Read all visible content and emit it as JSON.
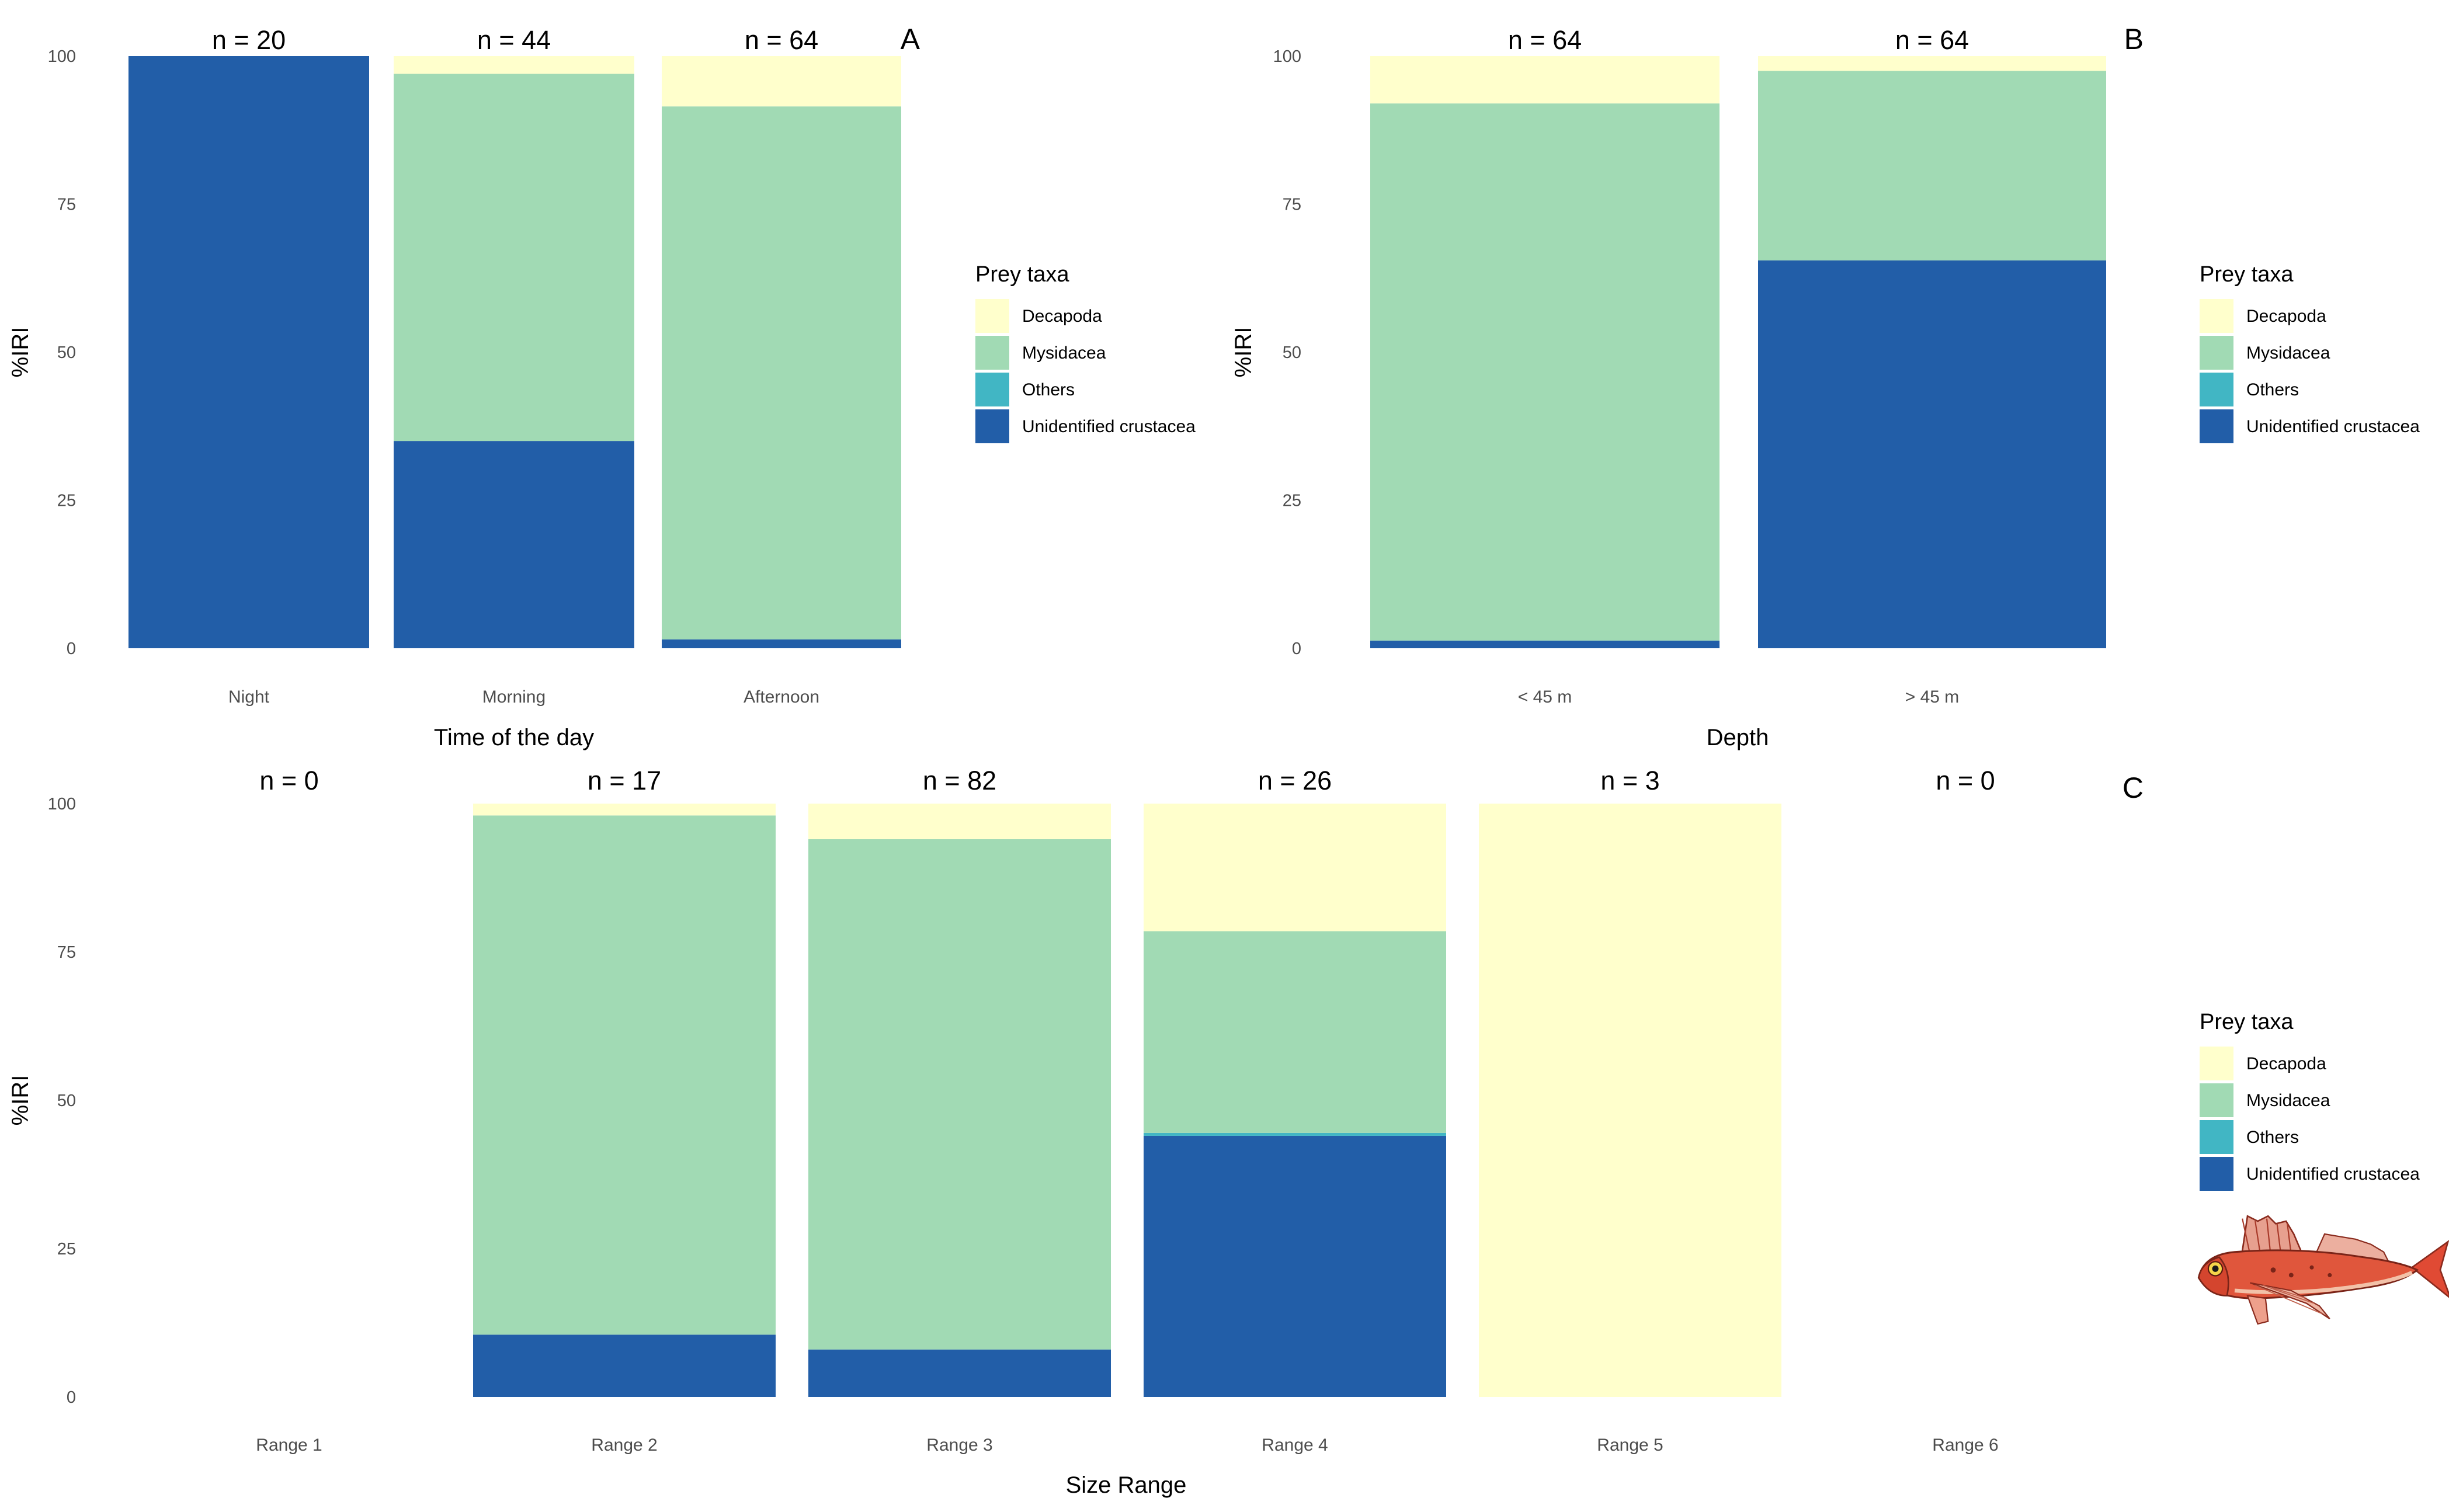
{
  "chart_data": [
    {
      "type": "bar",
      "panel": "A",
      "stacked": true,
      "xlabel": "Time of the day",
      "ylabel": "%IRI",
      "ylim": [
        0,
        100
      ],
      "yticks": [
        "0",
        "25",
        "50",
        "75",
        "100"
      ],
      "categories": [
        "Night",
        "Morning",
        "Afternoon"
      ],
      "n_labels": [
        "n = 20",
        "n = 44",
        "n = 64"
      ],
      "series": [
        {
          "name": "Unidentified crustacea",
          "values": [
            100,
            35,
            1.5
          ]
        },
        {
          "name": "Others",
          "values": [
            0,
            0,
            0
          ]
        },
        {
          "name": "Mysidacea",
          "values": [
            0,
            62,
            90
          ]
        },
        {
          "name": "Decapoda",
          "values": [
            0,
            3,
            8.5
          ]
        }
      ],
      "legend_title": "Prey taxa",
      "legend_position": "right"
    },
    {
      "type": "bar",
      "panel": "B",
      "stacked": true,
      "xlabel": "Depth",
      "ylabel": "%IRI",
      "ylim": [
        0,
        100
      ],
      "yticks": [
        "0",
        "25",
        "50",
        "75",
        "100"
      ],
      "categories": [
        "< 45 m",
        "> 45 m"
      ],
      "n_labels": [
        "n = 64",
        "n = 64"
      ],
      "series": [
        {
          "name": "Unidentified crustacea",
          "values": [
            1.3,
            65.5
          ]
        },
        {
          "name": "Others",
          "values": [
            0,
            0
          ]
        },
        {
          "name": "Mysidacea",
          "values": [
            90.7,
            32
          ]
        },
        {
          "name": "Decapoda",
          "values": [
            8,
            2.5
          ]
        }
      ],
      "legend_title": "Prey taxa",
      "legend_position": "right"
    },
    {
      "type": "bar",
      "panel": "C",
      "stacked": true,
      "xlabel": "Size Range",
      "ylabel": "%IRI",
      "ylim": [
        0,
        100
      ],
      "yticks": [
        "0",
        "25",
        "50",
        "75",
        "100"
      ],
      "categories": [
        "Range 1",
        "Range 2",
        "Range 3",
        "Range 4",
        "Range 5",
        "Range 6"
      ],
      "n_labels": [
        "n = 0",
        "n = 17",
        "n = 82",
        "n = 26",
        "n = 3",
        "n = 0"
      ],
      "series": [
        {
          "name": "Unidentified crustacea",
          "values": [
            0,
            10.5,
            8,
            44,
            0,
            0
          ]
        },
        {
          "name": "Others",
          "values": [
            0,
            0,
            0,
            0.5,
            0,
            0
          ]
        },
        {
          "name": "Mysidacea",
          "values": [
            0,
            87.5,
            86,
            34,
            0,
            0
          ]
        },
        {
          "name": "Decapoda",
          "values": [
            0,
            2,
            6,
            21.5,
            100,
            0
          ]
        }
      ],
      "legend_title": "Prey taxa",
      "legend_position": "right"
    }
  ],
  "legend_entries": [
    {
      "name": "Decapoda",
      "color": "#ffffcc"
    },
    {
      "name": "Mysidacea",
      "color": "#a1dab4"
    },
    {
      "name": "Others",
      "color": "#41b6c4"
    },
    {
      "name": "Unidentified crustacea",
      "color": "#225ea8"
    }
  ],
  "colors": {
    "Decapoda": "#ffffcc",
    "Mysidacea": "#a1dab4",
    "Others": "#41b6c4",
    "Unidentified crustacea": "#225ea8"
  },
  "illustration": {
    "subject": "red-gurnard-fish-icon"
  }
}
